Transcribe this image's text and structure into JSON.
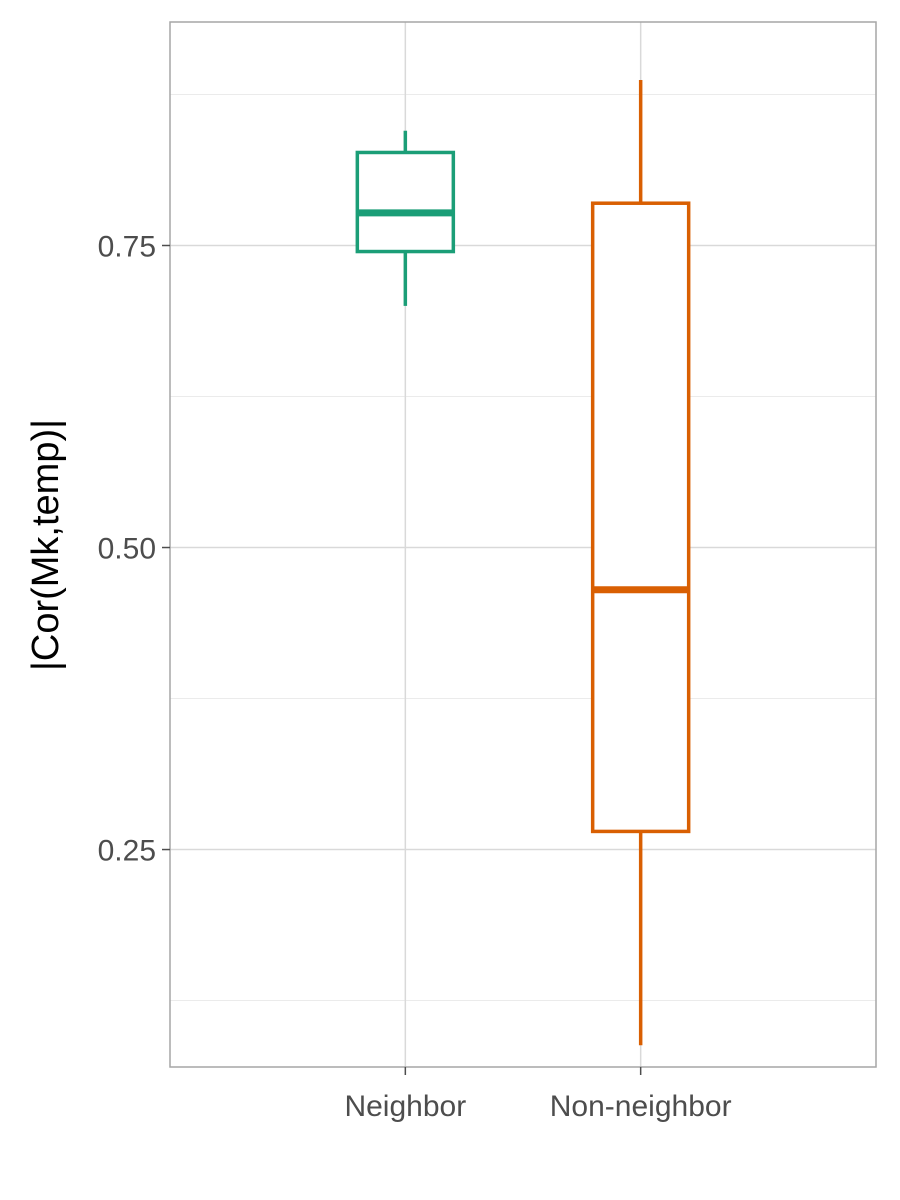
{
  "chart_data": {
    "type": "boxplot",
    "title": "",
    "xlabel": "",
    "ylabel": "|Cor(Mk,temp)|",
    "ylim": [
      0.07,
      0.935
    ],
    "y_ticks": [
      0.25,
      0.5,
      0.75
    ],
    "y_tick_labels": [
      "0.25",
      "0.50",
      "0.75"
    ],
    "y_minor_ticks": [
      0.125,
      0.375,
      0.625,
      0.875
    ],
    "grid": true,
    "legend": "none",
    "categories": [
      "Neighbor",
      "Non-neighbor"
    ],
    "boxes": [
      {
        "category": "Neighbor",
        "min": 0.7,
        "q1": 0.745,
        "median": 0.777,
        "q3": 0.827,
        "max": 0.845,
        "color": "#1b9e77"
      },
      {
        "category": "Non-neighbor",
        "min": 0.088,
        "q1": 0.265,
        "median": 0.465,
        "q3": 0.785,
        "max": 0.887,
        "color": "#d95f02"
      }
    ]
  }
}
